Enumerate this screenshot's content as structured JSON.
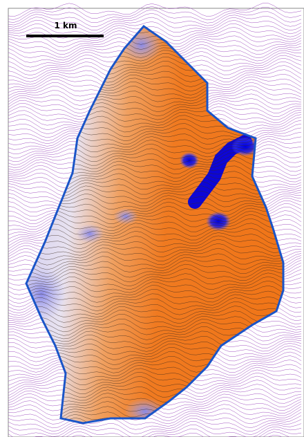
{
  "scale_bar": {
    "label": "1 km"
  }
}
